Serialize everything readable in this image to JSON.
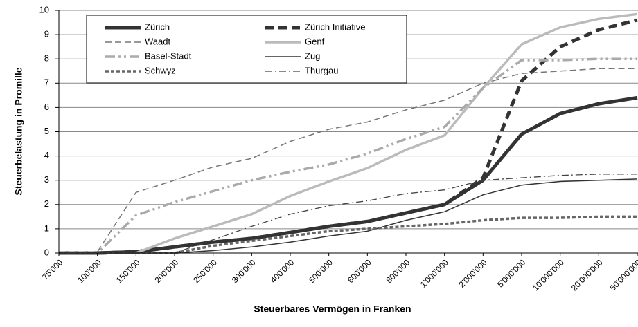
{
  "chart_data": {
    "type": "line",
    "xlabel": "Steuerbares Vermögen in Franken",
    "ylabel": "Steuerbelastung in Promille",
    "categories": [
      "75'000",
      "100'000",
      "150'000",
      "200'000",
      "250'000",
      "300'000",
      "400'000",
      "500'000",
      "600'000",
      "800'000",
      "1'000'000",
      "2'000'000",
      "5'000'000",
      "10'000'000",
      "20'000'000",
      "50'000'000"
    ],
    "ylim": [
      0,
      10
    ],
    "yticks": [
      0,
      1,
      2,
      3,
      4,
      5,
      6,
      7,
      8,
      9,
      10
    ],
    "grid": true,
    "legend": "top-left",
    "series": [
      {
        "name": "Zürich",
        "color": "#333333",
        "width": 5,
        "dash": "none",
        "values": [
          0,
          0,
          0.05,
          0.25,
          0.45,
          0.6,
          0.85,
          1.1,
          1.3,
          1.65,
          2.0,
          3.0,
          4.9,
          5.75,
          6.15,
          6.4
        ]
      },
      {
        "name": "Zürich Initiative",
        "color": "#333333",
        "width": 5,
        "dash": "12,7",
        "values": [
          0,
          0,
          0.05,
          0.25,
          0.45,
          0.6,
          0.85,
          1.1,
          1.3,
          1.65,
          2.0,
          3.1,
          7.1,
          8.5,
          9.2,
          9.6
        ]
      },
      {
        "name": "Waadt",
        "color": "#777777",
        "width": 1.5,
        "dash": "9,5",
        "values": [
          0.05,
          0.05,
          2.5,
          3.0,
          3.55,
          3.9,
          4.6,
          5.1,
          5.4,
          5.9,
          6.3,
          7.0,
          7.4,
          7.5,
          7.6,
          7.6
        ]
      },
      {
        "name": "Genf",
        "color": "#bbbbbb",
        "width": 3.5,
        "dash": "none",
        "values": [
          0,
          0,
          0,
          0.6,
          1.1,
          1.6,
          2.35,
          2.95,
          3.5,
          4.25,
          4.85,
          6.8,
          8.6,
          9.3,
          9.65,
          9.85
        ]
      },
      {
        "name": "Basel-Stadt",
        "color": "#aaaaaa",
        "width": 3.5,
        "dash": "14,5,3,5,3,5",
        "values": [
          0,
          0,
          1.55,
          2.1,
          2.55,
          3.0,
          3.35,
          3.65,
          4.1,
          4.7,
          5.2,
          6.8,
          7.95,
          7.95,
          8.0,
          8.0
        ]
      },
      {
        "name": "Zug",
        "color": "#333333",
        "width": 1.5,
        "dash": "none",
        "values": [
          0,
          0,
          0,
          0,
          0.1,
          0.25,
          0.45,
          0.7,
          0.9,
          1.35,
          1.7,
          2.4,
          2.8,
          2.95,
          3.0,
          3.05
        ]
      },
      {
        "name": "Schwyz",
        "color": "#666666",
        "width": 3.5,
        "dash": "5,3",
        "values": [
          0,
          0,
          0,
          0,
          0.3,
          0.5,
          0.7,
          0.9,
          1.0,
          1.1,
          1.2,
          1.35,
          1.45,
          1.45,
          1.5,
          1.5
        ]
      },
      {
        "name": "Thurgau",
        "color": "#444444",
        "width": 1.3,
        "dash": "10,4,2,4",
        "values": [
          0,
          0,
          0,
          0,
          0.55,
          1.1,
          1.6,
          1.95,
          2.15,
          2.45,
          2.6,
          3.0,
          3.1,
          3.2,
          3.25,
          3.25
        ]
      }
    ]
  }
}
